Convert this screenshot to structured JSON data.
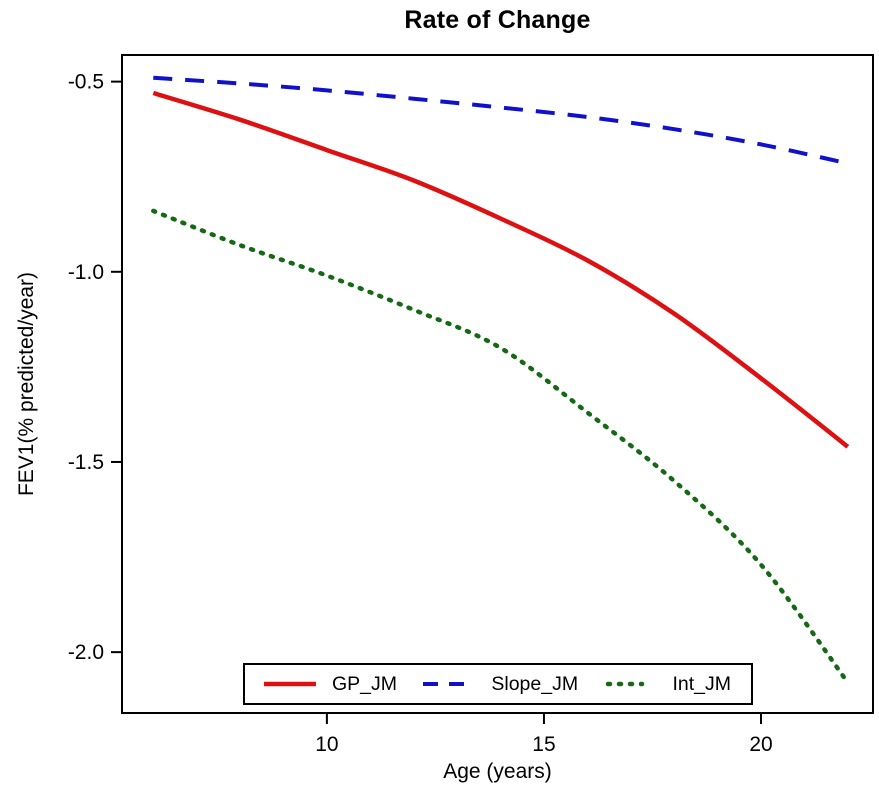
{
  "title": "Rate of Change",
  "axes": {
    "x": {
      "label": "Age (years)",
      "tick_labels": [
        "10",
        "15",
        "20"
      ],
      "tick_values": [
        10,
        15,
        20
      ]
    },
    "y": {
      "label": "FEV1(% predicted/year)",
      "tick_labels": [
        "-0.5",
        "-1.0",
        "-1.5",
        "-2.0"
      ],
      "tick_values": [
        -0.5,
        -1.0,
        -1.5,
        -2.0
      ]
    }
  },
  "chart_data": {
    "type": "line",
    "title": "Rate of Change",
    "xlabel": "Age (years)",
    "ylabel": "FEV1(% predicted/year)",
    "xlim": [
      5.28,
      22.58
    ],
    "ylim": [
      -2.16,
      -0.43
    ],
    "grid": false,
    "legend_position": "bottom-center-inside",
    "x": [
      6,
      8,
      10,
      12,
      14,
      16,
      18,
      20,
      22
    ],
    "series": [
      {
        "name": "GP_JM",
        "color": "#dd1111",
        "style": "solid",
        "values": [
          -0.53,
          -0.6,
          -0.68,
          -0.76,
          -0.86,
          -0.97,
          -1.11,
          -1.28,
          -1.46
        ]
      },
      {
        "name": "Slope_JM",
        "color": "#1111cc",
        "style": "dashed",
        "values": [
          -0.49,
          -0.505,
          -0.523,
          -0.545,
          -0.568,
          -0.593,
          -0.625,
          -0.665,
          -0.715
        ]
      },
      {
        "name": "Int_JM",
        "color": "#156915",
        "style": "dotted",
        "values": [
          -0.84,
          -0.93,
          -1.01,
          -1.1,
          -1.2,
          -1.37,
          -1.55,
          -1.77,
          -2.08
        ]
      }
    ],
    "axis_color": "#000000"
  }
}
